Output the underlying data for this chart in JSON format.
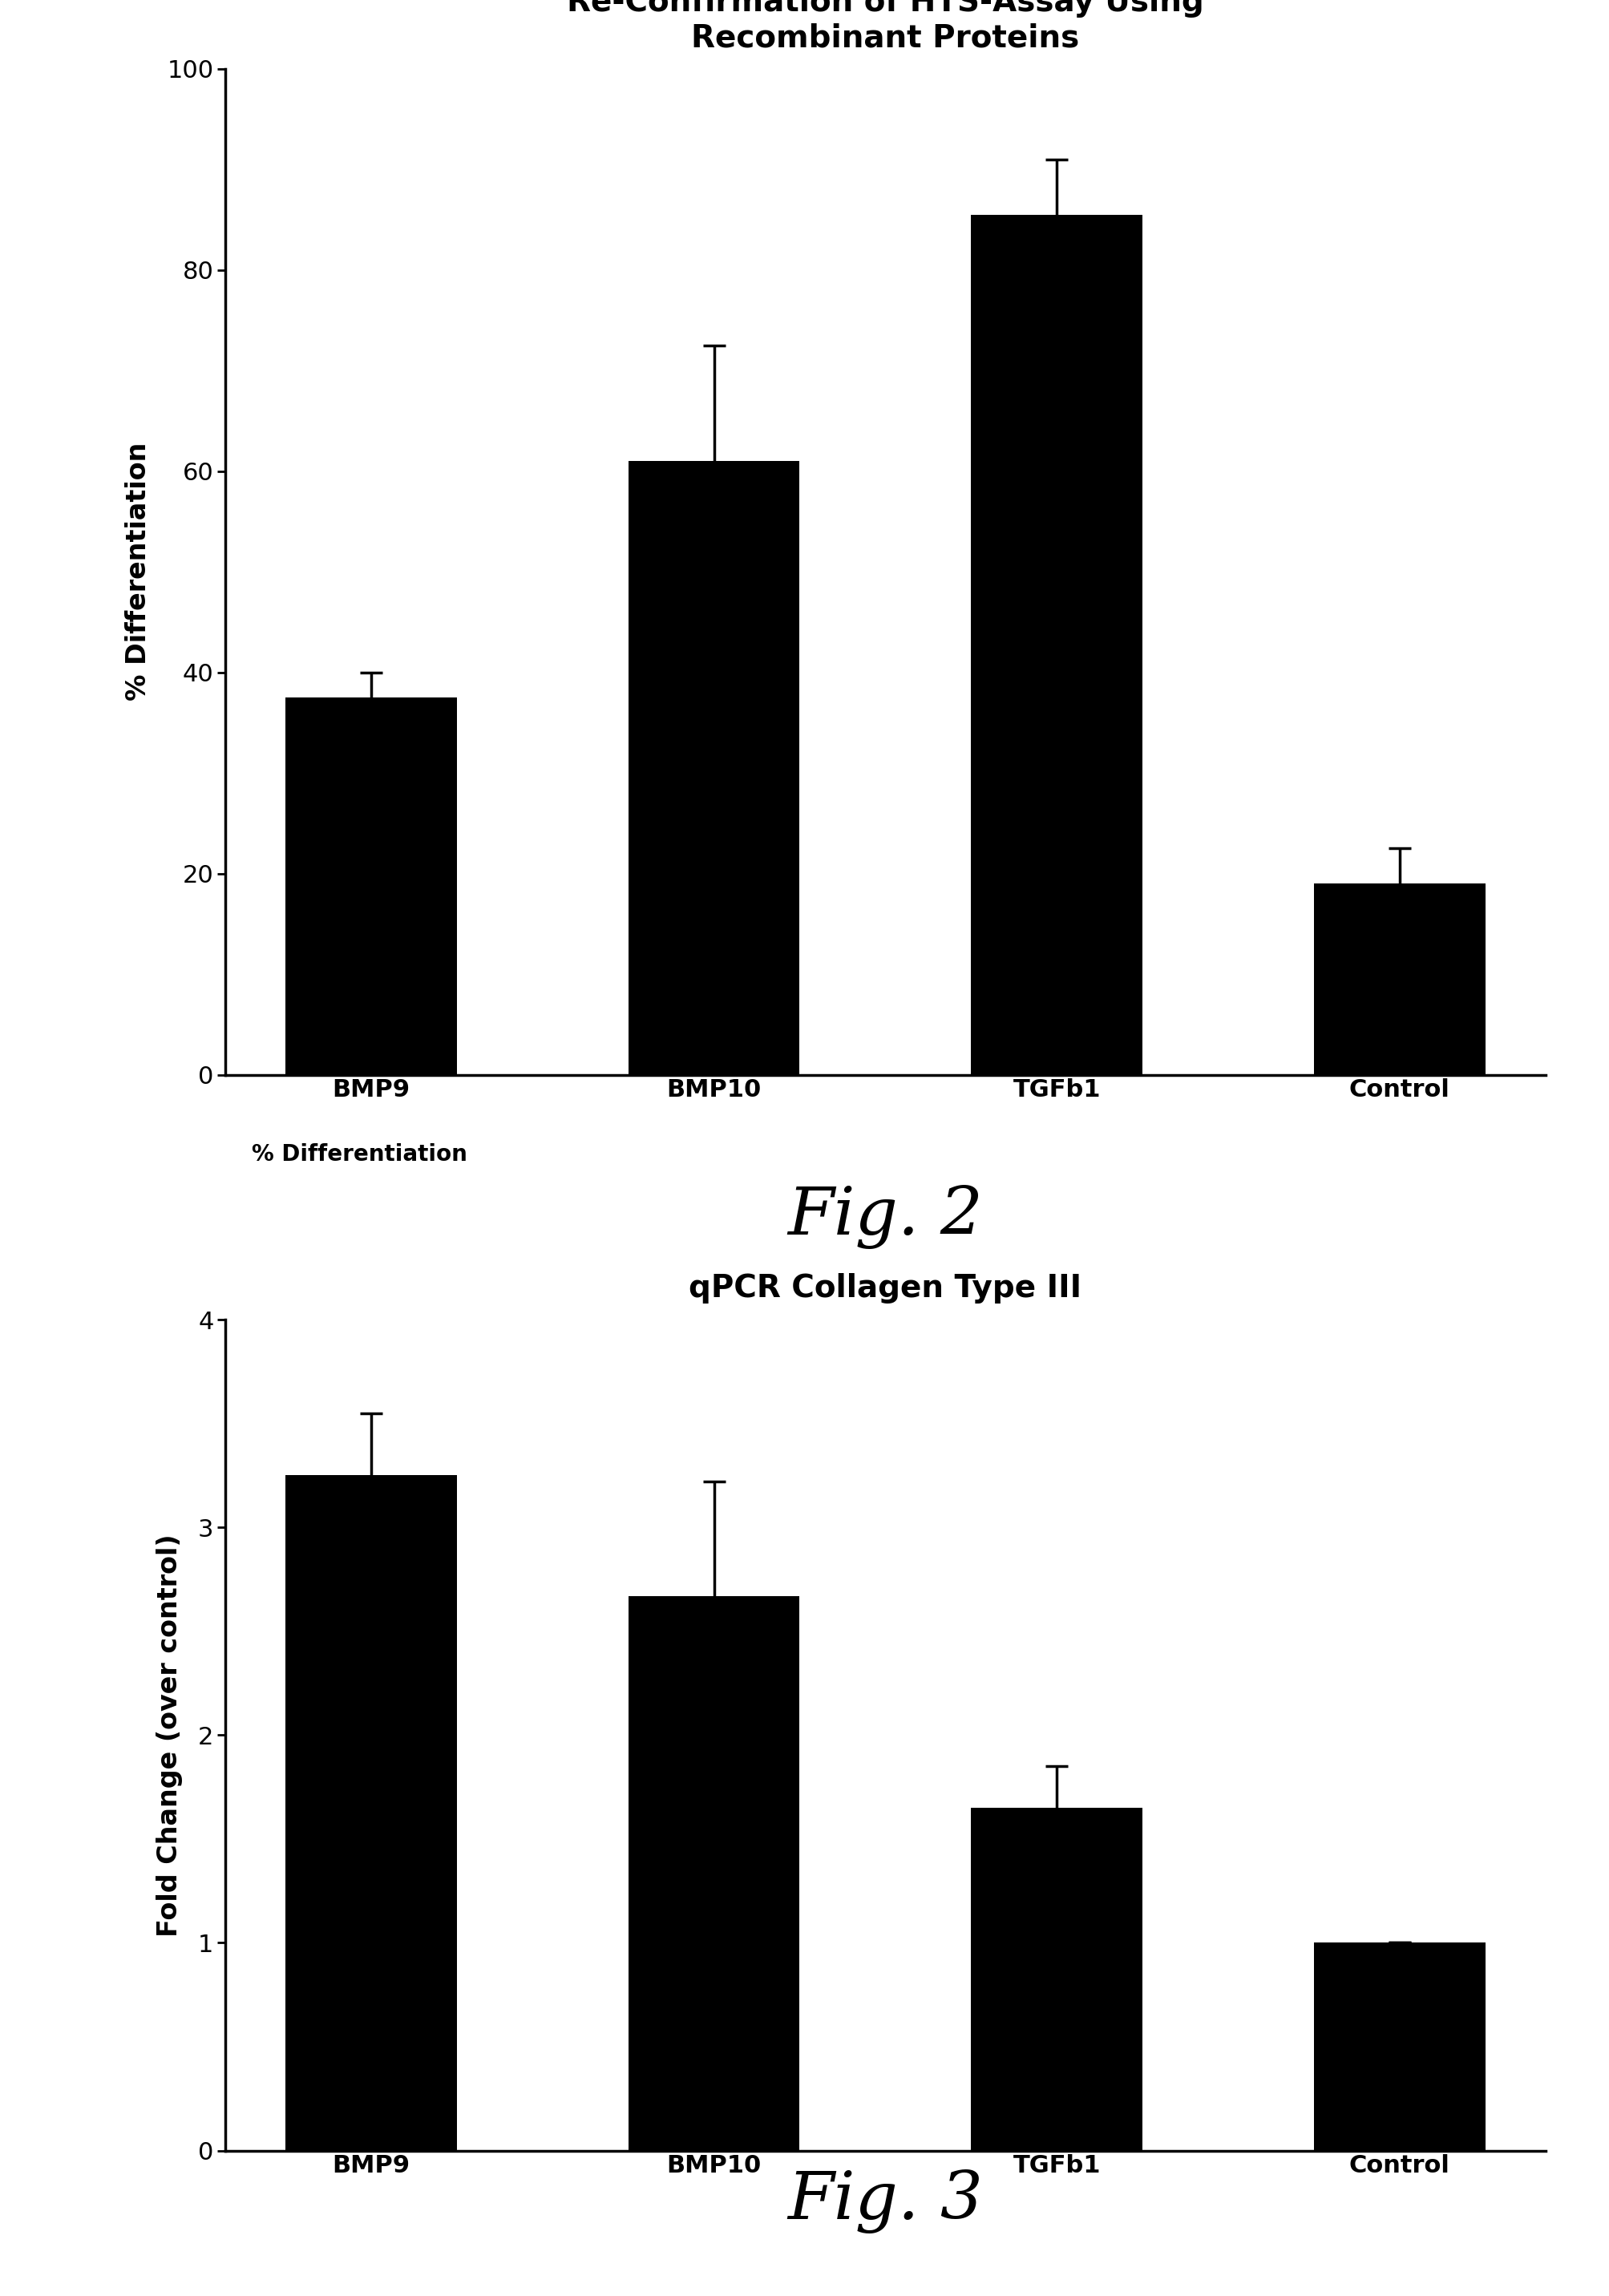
{
  "fig2": {
    "title": "Re-Confirmation of HTS-Assay Using\nRecombinant Proteins",
    "ylabel": "% Differentiation",
    "categories": [
      "BMP9",
      "BMP10",
      "TGFb1",
      "Control"
    ],
    "values": [
      37.5,
      61.0,
      85.5,
      19.0
    ],
    "errors": [
      2.5,
      11.5,
      5.5,
      3.5
    ],
    "ylim": [
      0,
      100
    ],
    "yticks": [
      0,
      20,
      40,
      60,
      80,
      100
    ],
    "bar_color": "#000000",
    "caption_label": "% Differentiation",
    "fig_label": "Fig. 2"
  },
  "fig3": {
    "title": "qPCR Collagen Type III",
    "ylabel": "Fold Change (over control)",
    "categories": [
      "BMP9",
      "BMP10",
      "TGFb1",
      "Control"
    ],
    "values": [
      3.25,
      2.67,
      1.65,
      1.0
    ],
    "errors": [
      0.3,
      0.55,
      0.2,
      0.0
    ],
    "ylim": [
      0,
      4
    ],
    "yticks": [
      0,
      1,
      2,
      3,
      4
    ],
    "bar_color": "#000000",
    "fig_label": "Fig. 3"
  },
  "background_color": "#ffffff",
  "title_fontsize": 28,
  "axis_label_fontsize": 24,
  "tick_fontsize": 22,
  "caption_fontsize": 20,
  "fig_label_fontsize": 60,
  "bar_width": 0.5
}
